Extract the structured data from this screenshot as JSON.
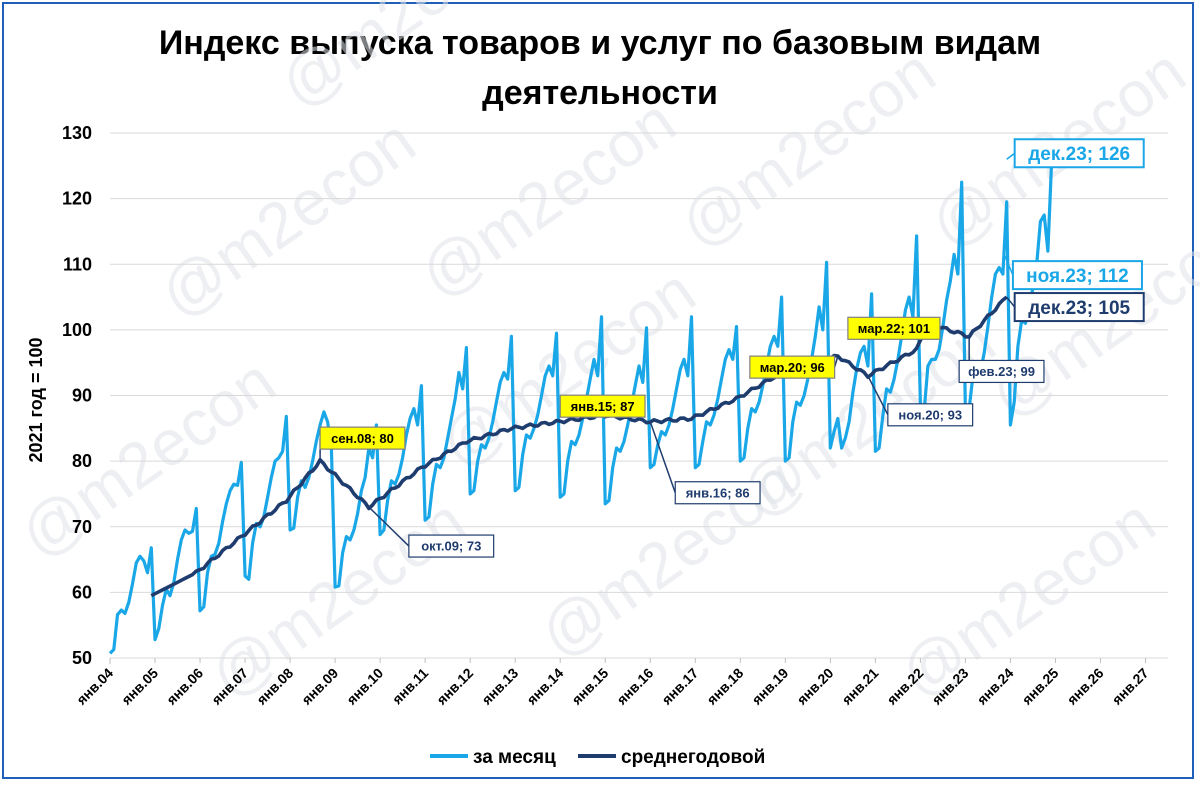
{
  "chart_data": {
    "type": "line",
    "title_line1": "Индекс выпуска товаров и услуг по базовым видам",
    "title_line2": "деятельности",
    "ylabel": "2021 год = 100",
    "ylim": [
      50,
      130
    ],
    "yticks": [
      50,
      60,
      70,
      80,
      90,
      100,
      110,
      120,
      130
    ],
    "x_categories": [
      "янв.04",
      "янв.05",
      "янв.06",
      "янв.07",
      "янв.08",
      "янв.09",
      "янв.10",
      "янв.11",
      "янв.12",
      "янв.13",
      "янв.14",
      "янв.15",
      "янв.16",
      "янв.17",
      "янв.18",
      "янв.19",
      "янв.20",
      "янв.21",
      "янв.22",
      "янв.23",
      "янв.24",
      "янв.25",
      "янв.26",
      "янв.27"
    ],
    "grid": "horizontal",
    "legend_position": "bottom",
    "watermark": "@m2econ",
    "colors": {
      "monthly": "#1aa7e8",
      "annual": "#1f3c6e",
      "grid": "#d9d9d9",
      "frame": "#1f5fb8",
      "highlight": "#ffff00"
    },
    "series": [
      {
        "name": "за месяц",
        "start_year": 2004,
        "values_by_year": [
          [
            50.7,
            51.3,
            56.6,
            57.3,
            56.8,
            58.5,
            61.3,
            64.5,
            65.5,
            64.8,
            63.0,
            66.8
          ],
          [
            52.8,
            54.5,
            58.0,
            60.5,
            59.5,
            61.5,
            65.0,
            68.0,
            69.5,
            69.0,
            69.3,
            72.8
          ],
          [
            57.2,
            57.8,
            63.0,
            65.5,
            65.8,
            67.5,
            70.8,
            73.5,
            75.5,
            76.5,
            76.3,
            79.8
          ],
          [
            62.5,
            62.0,
            67.5,
            70.5,
            70.0,
            71.5,
            74.5,
            77.5,
            80.0,
            80.5,
            81.5,
            86.8
          ],
          [
            69.5,
            69.8,
            74.5,
            77.0,
            76.0,
            77.5,
            80.0,
            83.0,
            85.5,
            87.5,
            86.0,
            82.0
          ],
          [
            60.8,
            61.0,
            66.0,
            68.5,
            68.0,
            69.5,
            72.0,
            75.5,
            77.5,
            82.0,
            80.5,
            85.5
          ],
          [
            68.8,
            69.5,
            74.0,
            77.0,
            76.5,
            78.0,
            80.5,
            84.0,
            86.5,
            88.0,
            85.5,
            91.5
          ],
          [
            71.0,
            71.5,
            76.5,
            79.5,
            79.0,
            80.5,
            83.5,
            86.5,
            89.5,
            93.5,
            91.0,
            97.3
          ],
          [
            75.0,
            75.5,
            80.0,
            82.5,
            82.0,
            83.5,
            86.0,
            89.0,
            92.0,
            93.5,
            92.5,
            99.0
          ],
          [
            75.5,
            76.0,
            81.0,
            84.0,
            83.5,
            85.0,
            87.0,
            90.0,
            93.0,
            94.5,
            93.0,
            99.5
          ],
          [
            74.5,
            75.0,
            80.0,
            83.0,
            82.5,
            84.0,
            86.5,
            89.5,
            92.5,
            95.5,
            93.0,
            102.0
          ],
          [
            73.5,
            74.0,
            79.0,
            82.0,
            81.5,
            83.0,
            85.5,
            88.5,
            91.5,
            94.5,
            92.0,
            100.3
          ],
          [
            79.0,
            79.5,
            82.5,
            84.5,
            84.0,
            85.5,
            88.0,
            91.0,
            94.0,
            95.5,
            93.0,
            102.0
          ],
          [
            79.0,
            79.5,
            83.0,
            86.0,
            85.5,
            87.0,
            89.5,
            92.5,
            95.5,
            97.0,
            95.5,
            100.5
          ],
          [
            80.0,
            80.5,
            85.0,
            88.0,
            87.5,
            89.0,
            91.5,
            94.5,
            97.5,
            99.0,
            97.5,
            105.0
          ],
          [
            80.0,
            80.5,
            86.0,
            89.0,
            88.5,
            90.0,
            92.5,
            95.5,
            99.0,
            103.5,
            100.0,
            110.3
          ],
          [
            82.0,
            84.5,
            86.5,
            82.0,
            83.5,
            86.0,
            90.5,
            94.0,
            96.5,
            97.5,
            94.5,
            105.5
          ],
          [
            81.5,
            82.0,
            87.0,
            91.0,
            90.5,
            92.5,
            95.5,
            99.0,
            103.0,
            105.0,
            102.0,
            114.3
          ],
          [
            88.5,
            87.5,
            94.5,
            95.5,
            95.5,
            97.0,
            100.5,
            104.5,
            107.5,
            111.5,
            108.5,
            122.5
          ],
          [
            87.5,
            88.0,
            93.0,
            95.0,
            93.5,
            96.5,
            100.5,
            105.0,
            108.5,
            109.5,
            108.5,
            119.5
          ],
          [
            85.5,
            89.0,
            97.5,
            101.5,
            101.0,
            103.0,
            106.5,
            110.0,
            116.5,
            117.5,
            112.0,
            126.0
          ]
        ]
      },
      {
        "name": "среднегодовой",
        "start": "дек.04",
        "anchors": [
          [
            "дек.04",
            59.5
          ],
          [
            "дек.05",
            63.0
          ],
          [
            "дек.06",
            68.5
          ],
          [
            "дек.07",
            74.0
          ],
          [
            "сен.08",
            80.0
          ],
          [
            "окт.09",
            73.0
          ],
          [
            "дек.10",
            79.0
          ],
          [
            "дек.11",
            83.0
          ],
          [
            "дек.12",
            85.0
          ],
          [
            "янв.15",
            87.0
          ],
          [
            "янв.16",
            86.0
          ],
          [
            "дек.16",
            86.5
          ],
          [
            "дек.17",
            89.5
          ],
          [
            "дек.18",
            93.5
          ],
          [
            "мар.20",
            96.0
          ],
          [
            "ноя.20",
            93.0
          ],
          [
            "дек.21",
            97.0
          ],
          [
            "мар.22",
            101.0
          ],
          [
            "фев.23",
            99.0
          ],
          [
            "дек.23",
            105.0
          ]
        ]
      }
    ],
    "annotations": [
      {
        "text": "сен.08; 80",
        "date": "сен.08",
        "value": 80,
        "style": "yellow"
      },
      {
        "text": "окт.09; 73",
        "date": "окт.09",
        "value": 73,
        "style": "white"
      },
      {
        "text": "янв.15; 87",
        "date": "янв.15",
        "value": 87,
        "style": "yellow"
      },
      {
        "text": "янв.16; 86",
        "date": "янв.16",
        "value": 86,
        "style": "white"
      },
      {
        "text": "мар.20; 96",
        "date": "мар.20",
        "value": 96,
        "style": "yellow"
      },
      {
        "text": "ноя.20; 93",
        "date": "ноя.20",
        "value": 93,
        "style": "white"
      },
      {
        "text": "мар.22; 101",
        "date": "мар.22",
        "value": 101,
        "style": "yellow"
      },
      {
        "text": "фев.23; 99",
        "date": "фев.23",
        "value": 99,
        "style": "white"
      },
      {
        "text": "дек.23; 126",
        "date": "дек.23",
        "value": 126,
        "style": "cyan-big"
      },
      {
        "text": "ноя.23; 112",
        "date": "ноя.23",
        "value": 112,
        "style": "cyan-big"
      },
      {
        "text": "дек.23; 105",
        "date": "дек.23",
        "value": 105,
        "style": "navy-big"
      }
    ]
  }
}
